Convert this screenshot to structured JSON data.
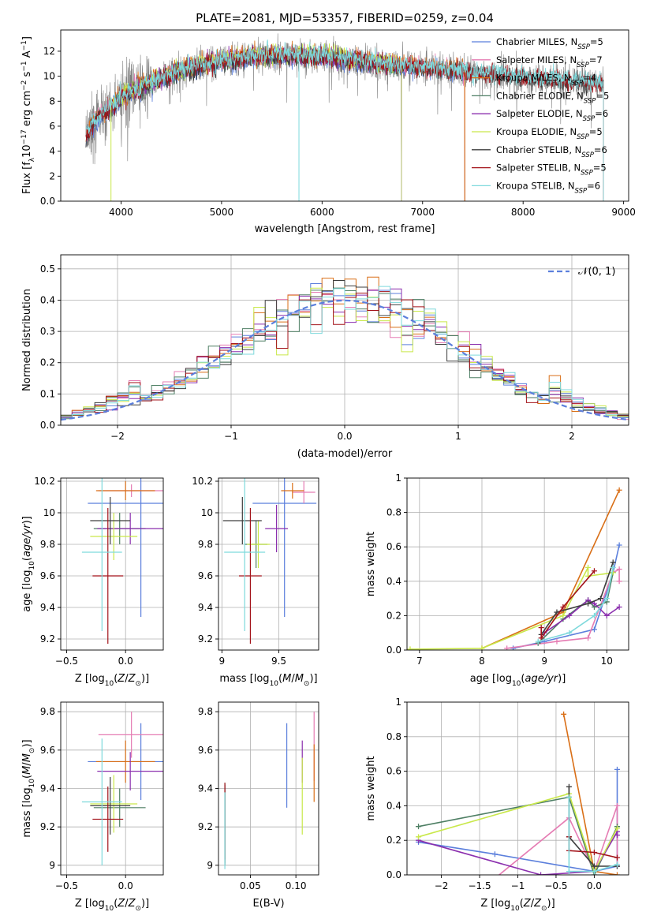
{
  "colors": {
    "chabrier_miles": "#5b7fdc",
    "salpeter_miles": "#e57cb3",
    "kroupa_miles": "#d96f17",
    "chabrier_elodie": "#4e7f64",
    "salpeter_elodie": "#8b2fae",
    "kroupa_elodie": "#c9e84a",
    "chabrier_stelib": "#3d3d3d",
    "salpeter_stelib": "#a3131a",
    "kroupa_stelib": "#7ed9dc",
    "data": "#808080",
    "normal": "#5b7fdc"
  },
  "chart_data": [
    {
      "id": "spectrum",
      "type": "line",
      "title": "PLATE=2081, MJD=53357, FIBERID=0259, z=0.04",
      "xlabel": "wavelength [Angstrom, rest frame]",
      "ylabel": "Flux [f_λ10^-17 erg cm^-2 s^-1 A^-1]",
      "xlim": [
        3400,
        9050
      ],
      "ylim": [
        0,
        13.7
      ],
      "xticks": [
        4000,
        5000,
        6000,
        7000,
        8000,
        9000
      ],
      "yticks": [
        0,
        2,
        4,
        6,
        8,
        10,
        12
      ],
      "continuum": {
        "x": [
          3650,
          3700,
          3800,
          3900,
          4000,
          4100,
          4300,
          4500,
          4800,
          5000,
          5300,
          5600,
          6000,
          6300,
          6600,
          7000,
          7400,
          7800,
          8200,
          8800
        ],
        "y": [
          5.2,
          6.0,
          6.9,
          7.5,
          8.3,
          8.8,
          9.5,
          10.2,
          10.9,
          11.2,
          11.6,
          11.7,
          11.6,
          11.3,
          11.0,
          10.7,
          10.4,
          10.1,
          9.8,
          9.4
        ]
      },
      "legend": [
        {
          "key": "chabrier_miles",
          "label": "Chabrier MILES, N",
          "sub": "SSP",
          "suffix": "=5"
        },
        {
          "key": "salpeter_miles",
          "label": "Salpeter MILES, N",
          "sub": "SSP",
          "suffix": "=7"
        },
        {
          "key": "kroupa_miles",
          "label": "Kroupa MILES, N",
          "sub": "SSP",
          "suffix": "=4"
        },
        {
          "key": "chabrier_elodie",
          "label": "Chabrier ELODIE, N",
          "sub": "SSP",
          "suffix": "=5"
        },
        {
          "key": "salpeter_elodie",
          "label": "Salpeter ELODIE, N",
          "sub": "SSP",
          "suffix": "=6"
        },
        {
          "key": "kroupa_elodie",
          "label": "Kroupa ELODIE, N",
          "sub": "SSP",
          "suffix": "=5"
        },
        {
          "key": "chabrier_stelib",
          "label": "Chabrier STELIB, N",
          "sub": "SSP",
          "suffix": "=6"
        },
        {
          "key": "salpeter_stelib",
          "label": "Salpeter STELIB, N",
          "sub": "SSP",
          "suffix": "=5"
        },
        {
          "key": "kroupa_stelib",
          "label": "Kroupa STELIB, N",
          "sub": "SSP",
          "suffix": "=6"
        }
      ],
      "model_ranges": [
        {
          "key": "chabrier_miles",
          "x": [
            3650,
            7420
          ]
        },
        {
          "key": "salpeter_miles",
          "x": [
            3650,
            7420
          ]
        },
        {
          "key": "kroupa_miles",
          "x": [
            3650,
            7420
          ]
        },
        {
          "key": "chabrier_elodie",
          "x": [
            3900,
            6790
          ]
        },
        {
          "key": "salpeter_elodie",
          "x": [
            3900,
            6790
          ]
        },
        {
          "key": "kroupa_elodie",
          "x": [
            3900,
            6790
          ]
        },
        {
          "key": "chabrier_stelib",
          "x": [
            3650,
            8800
          ]
        },
        {
          "key": "salpeter_stelib",
          "x": [
            3650,
            8800
          ]
        },
        {
          "key": "kroupa_stelib",
          "x": [
            3650,
            8800
          ]
        }
      ],
      "drops": [
        3900,
        5770,
        6790,
        7420
      ]
    },
    {
      "id": "residuals",
      "type": "histogram",
      "xlabel": "(data-model)/error",
      "ylabel": "Normed distribution",
      "xlim": [
        -2.5,
        2.5
      ],
      "ylim": [
        0,
        0.545
      ],
      "xticks": [
        -2,
        -1,
        0,
        1,
        2
      ],
      "yticks": [
        0.0,
        0.1,
        0.2,
        0.3,
        0.4,
        0.5
      ],
      "legend_label": "𝒩(0, 1)",
      "bin_width": 0.1
    },
    {
      "id": "age_vs_Z",
      "type": "errorbar",
      "xlabel": "Z [log10(Z/Z⊙)]",
      "ylabel": "age [log10(age/yr)]",
      "xlim": [
        -0.55,
        0.32
      ],
      "ylim": [
        9.13,
        10.22
      ],
      "xticks": [
        -0.5,
        0.0
      ],
      "yticks": [
        9.2,
        9.4,
        9.6,
        9.8,
        10.0,
        10.2
      ],
      "points": [
        {
          "key": "chabrier_miles",
          "x": 0.13,
          "y": 10.06,
          "xerr": 0.45,
          "yerr": 0.72
        },
        {
          "key": "salpeter_miles",
          "x": 0.05,
          "y": 10.14,
          "xerr": 0.28,
          "yerr": 0.04
        },
        {
          "key": "kroupa_miles",
          "x": 0.0,
          "y": 10.14,
          "xerr": 0.25,
          "yerr": 0.06
        },
        {
          "key": "chabrier_elodie",
          "x": -0.05,
          "y": 9.9,
          "xerr": 0.22,
          "yerr": 0.1
        },
        {
          "key": "salpeter_elodie",
          "x": 0.04,
          "y": 9.9,
          "xerr": 0.28,
          "yerr": 0.1
        },
        {
          "key": "kroupa_elodie",
          "x": -0.1,
          "y": 9.85,
          "xerr": 0.2,
          "yerr": 0.15
        },
        {
          "key": "chabrier_stelib",
          "x": -0.13,
          "y": 9.95,
          "xerr": 0.17,
          "yerr": 0.15
        },
        {
          "key": "salpeter_stelib",
          "x": -0.15,
          "y": 9.6,
          "xerr": 0.13,
          "yerr": 0.43
        },
        {
          "key": "kroupa_stelib",
          "x": -0.2,
          "y": 9.75,
          "xerr": 0.17,
          "yerr": 0.5
        }
      ]
    },
    {
      "id": "age_vs_mass",
      "type": "errorbar",
      "xlabel": "mass [log10(M/M⊙)]",
      "ylabel": "",
      "xlim": [
        8.97,
        9.85
      ],
      "ylim": [
        9.13,
        10.22
      ],
      "xticks": [
        9.0,
        9.5
      ],
      "yticks": [
        9.2,
        9.4,
        9.6,
        9.8,
        10.0,
        10.2
      ],
      "points": [
        {
          "key": "chabrier_miles",
          "x": 9.55,
          "y": 10.06,
          "xerr": 0.28,
          "yerr": 0.72
        },
        {
          "key": "salpeter_miles",
          "x": 9.72,
          "y": 10.13,
          "xerr": 0.1,
          "yerr": 0.07
        },
        {
          "key": "kroupa_miles",
          "x": 9.62,
          "y": 10.14,
          "xerr": 0.1,
          "yerr": 0.05
        },
        {
          "key": "chabrier_elodie",
          "x": 9.3,
          "y": 9.8,
          "xerr": 0.1,
          "yerr": 0.15
        },
        {
          "key": "salpeter_elodie",
          "x": 9.48,
          "y": 9.9,
          "xerr": 0.1,
          "yerr": 0.15
        },
        {
          "key": "kroupa_elodie",
          "x": 9.32,
          "y": 9.8,
          "xerr": 0.1,
          "yerr": 0.15
        },
        {
          "key": "chabrier_stelib",
          "x": 9.18,
          "y": 9.95,
          "xerr": 0.17,
          "yerr": 0.15
        },
        {
          "key": "salpeter_stelib",
          "x": 9.25,
          "y": 9.6,
          "xerr": 0.1,
          "yerr": 0.43
        },
        {
          "key": "kroupa_stelib",
          "x": 9.2,
          "y": 9.75,
          "xerr": 0.18,
          "yerr": 0.5
        }
      ]
    },
    {
      "id": "weight_vs_age",
      "type": "line",
      "xlabel": "age [log10(age/yr)]",
      "ylabel": "mass weight",
      "xlim": [
        6.8,
        10.35
      ],
      "ylim": [
        0,
        1.0
      ],
      "xticks": [
        7,
        8,
        9,
        10
      ],
      "yticks": [
        0.0,
        0.2,
        0.4,
        0.6,
        0.8,
        1.0
      ],
      "series": [
        {
          "key": "chabrier_miles",
          "x": [
            8.5,
            9.0,
            9.8,
            10.1,
            10.2
          ],
          "y": [
            0.01,
            0.05,
            0.12,
            0.45,
            0.61
          ]
        },
        {
          "key": "salpeter_miles",
          "x": [
            8.4,
            9.2,
            9.7,
            10.1,
            10.2,
            10.2
          ],
          "y": [
            0.01,
            0.05,
            0.07,
            0.45,
            0.47,
            0.4
          ]
        },
        {
          "key": "kroupa_miles",
          "x": [
            8.0,
            9.3,
            10.2
          ],
          "y": [
            0.01,
            0.22,
            0.93
          ]
        },
        {
          "key": "chabrier_elodie",
          "x": [
            8.9,
            9.3,
            9.7,
            9.8,
            10.0,
            10.1
          ],
          "y": [
            0.04,
            0.18,
            0.29,
            0.25,
            0.28,
            0.45
          ]
        },
        {
          "key": "salpeter_elodie",
          "x": [
            9.0,
            9.4,
            9.7,
            9.8,
            10.0,
            10.2
          ],
          "y": [
            0.1,
            0.2,
            0.29,
            0.27,
            0.2,
            0.25
          ]
        },
        {
          "key": "kroupa_elodie",
          "x": [
            6.85,
            8.0,
            9.3,
            9.7,
            9.7,
            10.1
          ],
          "y": [
            0.005,
            0.01,
            0.2,
            0.48,
            0.43,
            0.45
          ]
        },
        {
          "key": "chabrier_stelib",
          "x": [
            8.95,
            9.2,
            9.7,
            9.9,
            10.1
          ],
          "y": [
            0.09,
            0.22,
            0.27,
            0.3,
            0.51
          ]
        },
        {
          "key": "salpeter_stelib",
          "x": [
            8.95,
            8.95,
            9.3,
            9.8
          ],
          "y": [
            0.13,
            0.07,
            0.25,
            0.46
          ]
        },
        {
          "key": "kroupa_stelib",
          "x": [
            8.9,
            9.4,
            9.8,
            10.0,
            10.1
          ],
          "y": [
            0.05,
            0.1,
            0.2,
            0.3,
            0.48
          ]
        }
      ]
    },
    {
      "id": "mass_vs_Z",
      "type": "errorbar",
      "xlabel": "Z [log10(Z/Z⊙)]",
      "ylabel": "mass [log10(M/M⊙)]",
      "xlim": [
        -0.55,
        0.32
      ],
      "ylim": [
        8.95,
        9.85
      ],
      "xticks": [
        -0.5,
        0.0
      ],
      "yticks": [
        9.0,
        9.2,
        9.4,
        9.6,
        9.8
      ],
      "points": [
        {
          "key": "chabrier_miles",
          "x": 0.13,
          "y": 9.54,
          "xerr": 0.45,
          "yerr": 0.2
        },
        {
          "key": "salpeter_miles",
          "x": 0.05,
          "y": 9.68,
          "xerr": 0.28,
          "yerr": 0.12
        },
        {
          "key": "kroupa_miles",
          "x": 0.0,
          "y": 9.54,
          "xerr": 0.25,
          "yerr": 0.11
        },
        {
          "key": "chabrier_elodie",
          "x": -0.05,
          "y": 9.3,
          "xerr": 0.22,
          "yerr": 0.1
        },
        {
          "key": "salpeter_elodie",
          "x": 0.04,
          "y": 9.49,
          "xerr": 0.28,
          "yerr": 0.1
        },
        {
          "key": "kroupa_elodie",
          "x": -0.1,
          "y": 9.32,
          "xerr": 0.2,
          "yerr": 0.15
        },
        {
          "key": "chabrier_stelib",
          "x": -0.13,
          "y": 9.31,
          "xerr": 0.17,
          "yerr": 0.15
        },
        {
          "key": "salpeter_stelib",
          "x": -0.15,
          "y": 9.24,
          "xerr": 0.13,
          "yerr": 0.17
        },
        {
          "key": "kroupa_stelib",
          "x": -0.2,
          "y": 9.33,
          "xerr": 0.17,
          "yerr": 0.33
        }
      ]
    },
    {
      "id": "mass_vs_ebv",
      "type": "errorbar",
      "xlabel": "E(B-V)",
      "ylabel": "",
      "xlim": [
        0.015,
        0.125
      ],
      "ylim": [
        8.95,
        9.85
      ],
      "xticks": [
        0.05,
        0.1
      ],
      "yticks": [
        9.0,
        9.2,
        9.4,
        9.6,
        9.8
      ],
      "points": [
        {
          "key": "chabrier_miles",
          "x": 0.09,
          "y": 9.52,
          "xerr": 0,
          "yerr": 0.22
        },
        {
          "key": "salpeter_miles",
          "x": 0.12,
          "y": 9.62,
          "xerr": 0,
          "yerr": 0.18
        },
        {
          "key": "kroupa_miles",
          "x": 0.12,
          "y": 9.48,
          "xerr": 0,
          "yerr": 0.15
        },
        {
          "key": "chabrier_elodie",
          "x": 0.022,
          "y": 9.22,
          "xerr": 0,
          "yerr": 0.21
        },
        {
          "key": "salpeter_elodie",
          "x": 0.107,
          "y": 9.54,
          "xerr": 0,
          "yerr": 0.11
        },
        {
          "key": "kroupa_elodie",
          "x": 0.107,
          "y": 9.36,
          "xerr": 0,
          "yerr": 0.2
        },
        {
          "key": "chabrier_stelib",
          "x": 0.022,
          "y": 9.21,
          "xerr": 0,
          "yerr": 0.21
        },
        {
          "key": "salpeter_stelib",
          "x": 0.022,
          "y": 9.23,
          "xerr": 0,
          "yerr": 0.2
        },
        {
          "key": "kroupa_stelib",
          "x": 0.022,
          "y": 9.18,
          "xerr": 0,
          "yerr": 0.2
        }
      ]
    },
    {
      "id": "weight_vs_Z",
      "type": "line",
      "xlabel": "Z [log10(Z/Z⊙)]",
      "ylabel": "mass weight",
      "xlim": [
        -2.45,
        0.45
      ],
      "ylim": [
        0,
        1.0
      ],
      "xticks": [
        -2.0,
        -1.5,
        -1.0,
        -0.5,
        0.0
      ],
      "yticks": [
        0.0,
        0.2,
        0.4,
        0.6,
        0.8,
        1.0
      ],
      "series": [
        {
          "key": "chabrier_miles",
          "x": [
            -2.3,
            -1.3,
            0.0,
            0.3,
            0.3
          ],
          "y": [
            0.19,
            0.12,
            0.02,
            0.05,
            0.61
          ]
        },
        {
          "key": "salpeter_miles",
          "x": [
            -1.3,
            -0.33,
            0.0,
            0.3,
            0.3
          ],
          "y": [
            -0.02,
            0.33,
            0.02,
            0.4,
            0.05
          ]
        },
        {
          "key": "kroupa_miles",
          "x": [
            -0.4,
            0.0,
            0.3
          ],
          "y": [
            0.93,
            0.02,
            0.0
          ]
        },
        {
          "key": "chabrier_elodie",
          "x": [
            -2.3,
            -0.33,
            0.0,
            0.3
          ],
          "y": [
            0.28,
            0.45,
            0.0,
            0.28
          ]
        },
        {
          "key": "salpeter_elodie",
          "x": [
            -2.3,
            -0.7,
            0.0,
            0.3,
            0.3
          ],
          "y": [
            0.2,
            0.0,
            0.02,
            0.25,
            0.23
          ]
        },
        {
          "key": "kroupa_elodie",
          "x": [
            -2.3,
            -0.33,
            0.0,
            0.3
          ],
          "y": [
            0.22,
            0.47,
            0.02,
            0.27
          ]
        },
        {
          "key": "chabrier_stelib",
          "x": [
            -0.33,
            -0.33,
            0.0,
            0.3
          ],
          "y": [
            0.51,
            0.22,
            0.05,
            0.05
          ]
        },
        {
          "key": "salpeter_stelib",
          "x": [
            -0.33,
            -0.33,
            0.0,
            0.3
          ],
          "y": [
            0.22,
            0.14,
            0.13,
            0.1
          ]
        },
        {
          "key": "kroupa_stelib",
          "x": [
            -0.33,
            -0.33,
            0.0,
            0.3
          ],
          "y": [
            0.45,
            0.02,
            0.02,
            0.06
          ]
        }
      ]
    }
  ]
}
